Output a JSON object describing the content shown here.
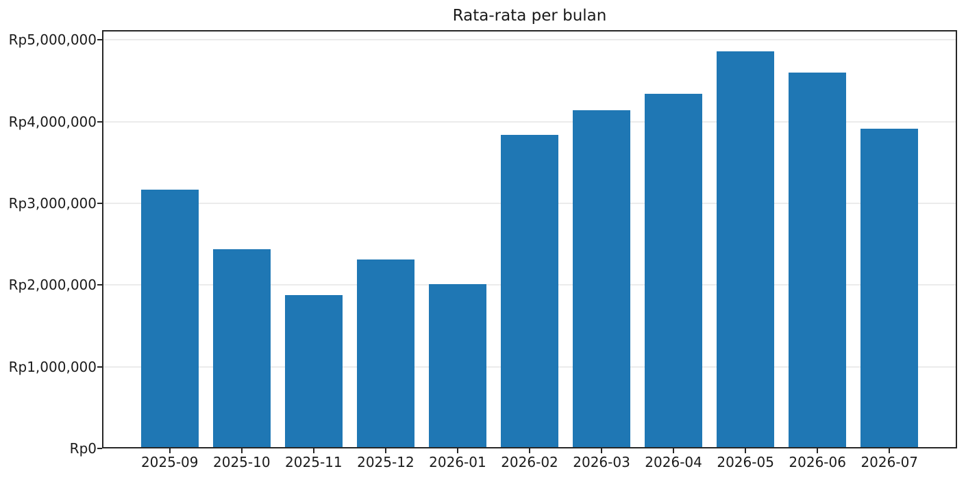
{
  "chart_data": {
    "type": "bar",
    "title": "Rata-rata per bulan",
    "categories": [
      "2025-09",
      "2025-10",
      "2025-11",
      "2025-12",
      "2026-01",
      "2026-02",
      "2026-03",
      "2026-04",
      "2026-05",
      "2026-06",
      "2026-07"
    ],
    "values": [
      3170000,
      2440000,
      1880000,
      2310000,
      2010000,
      3840000,
      4140000,
      4340000,
      4860000,
      4600000,
      3910000
    ],
    "xlabel": "",
    "ylabel": "",
    "y_tick_labels": [
      "Rp0",
      "Rp1,000,000",
      "Rp2,000,000",
      "Rp3,000,000",
      "Rp4,000,000",
      "Rp5,000,000"
    ],
    "y_tick_values": [
      0,
      1000000,
      2000000,
      3000000,
      4000000,
      5000000
    ],
    "ylim": [
      0,
      5120000
    ],
    "xlim": [
      -0.94,
      10.94
    ],
    "bar_rel_width": 0.8,
    "grid": "horizontal",
    "legend": "none",
    "colors": {
      "bar": "#1f77b4",
      "grid": "#ebebeb",
      "axis": "#262626",
      "text": "#1a1a1a",
      "background": "#ffffff"
    }
  }
}
